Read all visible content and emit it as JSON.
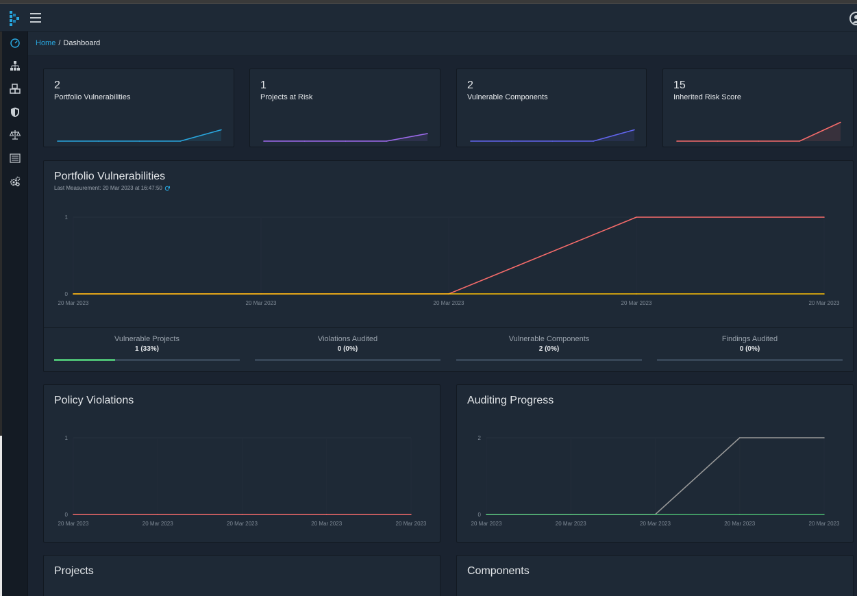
{
  "breadcrumb": {
    "home": "Home",
    "separator": "/",
    "current": "Dashboard"
  },
  "icons": {
    "logo": "dependency-track-logo",
    "menu": "hamburger-icon",
    "user": "user-avatar-icon",
    "sidebar": [
      "dashboard-icon",
      "projects-hierarchy-icon",
      "components-icon",
      "vulnerabilities-shield-icon",
      "policy-scale-icon",
      "licenses-list-icon",
      "settings-gears-icon"
    ]
  },
  "colors": {
    "accent": "#29a8e0",
    "critical": "#f86c6b",
    "medium": "#ffc107",
    "success": "#4dbd74",
    "purple": "#8b5cf6",
    "indigo": "#6366f1",
    "gray": "#999999"
  },
  "stats": [
    {
      "value": "2",
      "label": "Portfolio Vulnerabilities"
    },
    {
      "value": "1",
      "label": "Projects at Risk"
    },
    {
      "value": "2",
      "label": "Vulnerable Components"
    },
    {
      "value": "15",
      "label": "Inherited Risk Score"
    }
  ],
  "portfolio": {
    "title": "Portfolio Vulnerabilities",
    "last_measurement": "Last Measurement: 20 Mar 2023 at 16:47:50",
    "metrics": [
      {
        "label": "Vulnerable Projects",
        "value": "1 (33%)",
        "progress": 0.33
      },
      {
        "label": "Violations Audited",
        "value": "0 (0%)",
        "progress": 0
      },
      {
        "label": "Vulnerable Components",
        "value": "2 (0%)",
        "progress": 0
      },
      {
        "label": "Findings Audited",
        "value": "0 (0%)",
        "progress": 0
      }
    ]
  },
  "policy": {
    "title": "Policy Violations"
  },
  "auditing": {
    "title": "Auditing Progress"
  },
  "projects": {
    "title": "Projects"
  },
  "components": {
    "title": "Components"
  },
  "chart_data": [
    {
      "type": "line",
      "name": "stat-portfolio-vulnerabilities",
      "x": [
        "20 Mar 2023",
        "20 Mar 2023",
        "20 Mar 2023",
        "20 Mar 2023",
        "20 Mar 2023"
      ],
      "series": [
        {
          "values": [
            0,
            0,
            0,
            0,
            2
          ],
          "color": "#29a8e0"
        }
      ],
      "ylim": [
        0,
        4
      ]
    },
    {
      "type": "line",
      "name": "stat-projects-at-risk",
      "x": [
        "20 Mar 2023",
        "20 Mar 2023",
        "20 Mar 2023",
        "20 Mar 2023",
        "20 Mar 2023"
      ],
      "series": [
        {
          "values": [
            0,
            0,
            0,
            0,
            1
          ],
          "color": "#a06cf0"
        }
      ],
      "ylim": [
        0,
        3
      ]
    },
    {
      "type": "line",
      "name": "stat-vulnerable-components",
      "x": [
        "20 Mar 2023",
        "20 Mar 2023",
        "20 Mar 2023",
        "20 Mar 2023",
        "20 Mar 2023"
      ],
      "series": [
        {
          "values": [
            0,
            0,
            0,
            0,
            2
          ],
          "color": "#6366f1"
        }
      ],
      "ylim": [
        0,
        4
      ]
    },
    {
      "type": "line",
      "name": "stat-inherited-risk-score",
      "x": [
        "20 Mar 2023",
        "20 Mar 2023",
        "20 Mar 2023",
        "20 Mar 2023",
        "20 Mar 2023"
      ],
      "series": [
        {
          "values": [
            0,
            0,
            0,
            0,
            15
          ],
          "color": "#f86c6b"
        }
      ],
      "ylim": [
        0,
        18
      ]
    },
    {
      "type": "line",
      "name": "portfolio-vulnerabilities",
      "x": [
        "20 Mar 2023",
        "20 Mar 2023",
        "20 Mar 2023",
        "20 Mar 2023",
        "20 Mar 2023"
      ],
      "yticks": [
        0,
        1
      ],
      "ylim": [
        0,
        1
      ],
      "series": [
        {
          "values": [
            0,
            0,
            0,
            1,
            1
          ],
          "color": "#f86c6b"
        },
        {
          "values": [
            0,
            0,
            0,
            0,
            0
          ],
          "color": "#ffc107"
        }
      ]
    },
    {
      "type": "line",
      "name": "policy-violations",
      "x": [
        "20 Mar 2023",
        "20 Mar 2023",
        "20 Mar 2023",
        "20 Mar 2023",
        "20 Mar 2023"
      ],
      "yticks": [
        0,
        1
      ],
      "ylim": [
        0,
        1
      ],
      "series": [
        {
          "values": [
            0,
            0,
            0,
            0,
            0
          ],
          "color": "#f86c6b"
        }
      ]
    },
    {
      "type": "line",
      "name": "auditing-progress",
      "x": [
        "20 Mar 2023",
        "20 Mar 2023",
        "20 Mar 2023",
        "20 Mar 2023",
        "20 Mar 2023"
      ],
      "yticks": [
        0,
        2
      ],
      "ylim": [
        0,
        2
      ],
      "series": [
        {
          "values": [
            0,
            0,
            0,
            2,
            2
          ],
          "color": "#999999"
        },
        {
          "values": [
            0,
            0,
            0,
            0,
            0
          ],
          "color": "#4dbd74"
        }
      ]
    }
  ]
}
